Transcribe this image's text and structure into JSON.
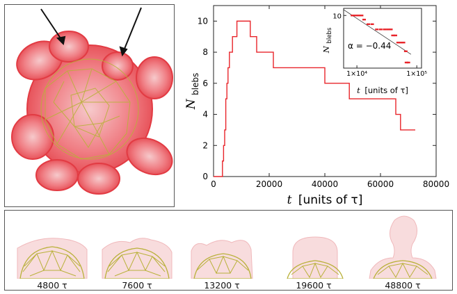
{
  "chart_data": [
    {
      "type": "line",
      "xlabel_var": "t",
      "xlabel_rest": "[units of τ]",
      "ylabel_var": "N",
      "ylabel_sub": "blebs",
      "xlim": [
        0,
        80000
      ],
      "ylim": [
        0,
        11
      ],
      "x_ticks": [
        "0",
        "20000",
        "40000",
        "60000",
        "80000"
      ],
      "y_ticks": [
        "0",
        "2",
        "4",
        "6",
        "8",
        "10"
      ],
      "color": "#e8242a",
      "series": [
        {
          "x": [
            0,
            2800,
            3200,
            3600,
            4000,
            4400,
            4800,
            5200,
            5700,
            6200,
            6800,
            7600,
            8400,
            13200,
            15500,
            21500,
            40000,
            48800,
            65500,
            67200,
            72500
          ],
          "y": [
            0,
            0,
            1,
            2,
            3,
            5,
            6,
            7,
            8,
            8,
            9,
            9,
            10,
            9,
            8,
            7,
            6,
            5,
            4,
            3,
            3
          ]
        }
      ]
    },
    {
      "type": "scatter",
      "inset": true,
      "xlabel_var": "t",
      "xlabel_rest": "[units of τ]",
      "ylabel_var": "N",
      "ylabel_sub": "blebs",
      "x_scale": "log",
      "y_scale": "log",
      "x_ticks": [
        "1×10⁴",
        "1×10⁵"
      ],
      "y_ticks": [
        "10"
      ],
      "annotation": "α = −0.44",
      "color": "#e8242a",
      "points": [
        {
          "x": 8400,
          "y": 10
        },
        {
          "x": 9500,
          "y": 10
        },
        {
          "x": 10800,
          "y": 10
        },
        {
          "x": 12000,
          "y": 10
        },
        {
          "x": 13200,
          "y": 9
        },
        {
          "x": 15500,
          "y": 8
        },
        {
          "x": 18000,
          "y": 8
        },
        {
          "x": 21500,
          "y": 7
        },
        {
          "x": 25000,
          "y": 7
        },
        {
          "x": 29000,
          "y": 7
        },
        {
          "x": 33000,
          "y": 7
        },
        {
          "x": 37000,
          "y": 7
        },
        {
          "x": 40000,
          "y": 6
        },
        {
          "x": 44000,
          "y": 6
        },
        {
          "x": 48800,
          "y": 5
        },
        {
          "x": 54000,
          "y": 5
        },
        {
          "x": 60000,
          "y": 5
        },
        {
          "x": 65500,
          "y": 4
        },
        {
          "x": 67200,
          "y": 3
        },
        {
          "x": 72500,
          "y": 3
        }
      ],
      "fit_line": {
        "x": [
          6000,
          80000
        ],
        "y": [
          11.6,
          3.7
        ]
      }
    }
  ],
  "snapshots": [
    {
      "label": "4800 τ"
    },
    {
      "label": "7600 τ"
    },
    {
      "label": "13200 τ"
    },
    {
      "label": "19600 τ"
    },
    {
      "label": "48800 τ"
    }
  ],
  "colors": {
    "membrane": "#e8242a",
    "cortex": "#b9b13a"
  }
}
